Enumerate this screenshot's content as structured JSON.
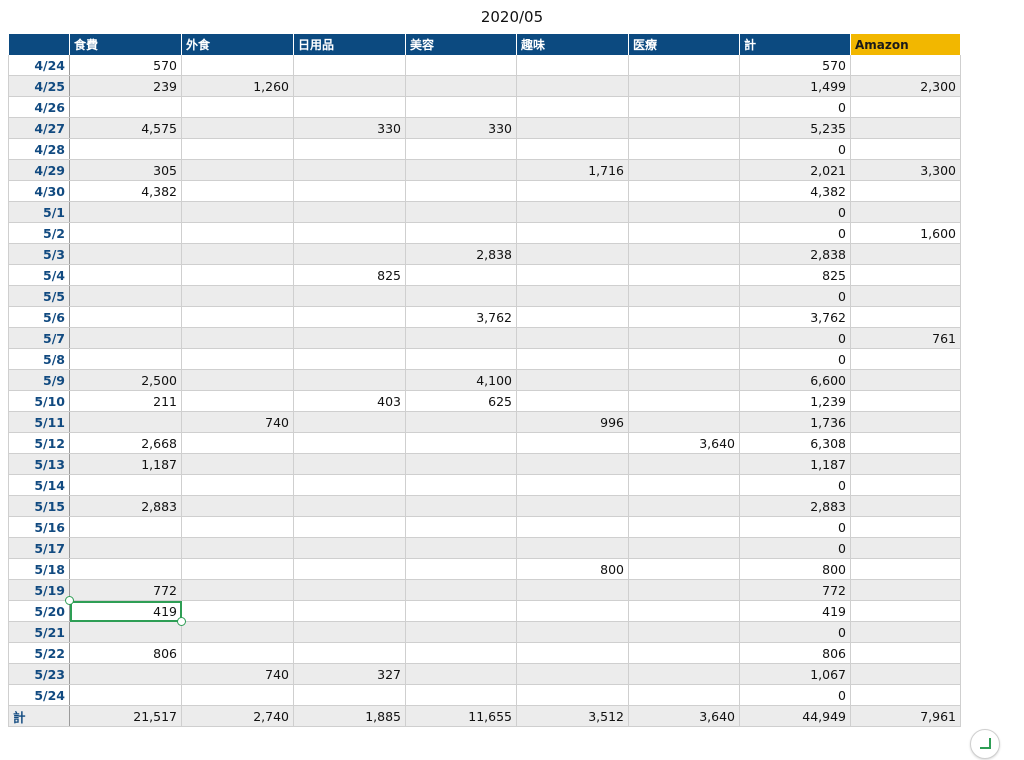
{
  "sheet": {
    "title": "2020/05",
    "columns": [
      "",
      "食費",
      "外食",
      "日用品",
      "美容",
      "趣味",
      "医療",
      "計",
      "Amazon"
    ],
    "rows": [
      [
        "4/24",
        "570",
        "",
        "",
        "",
        "",
        "",
        "570",
        ""
      ],
      [
        "4/25",
        "239",
        "1,260",
        "",
        "",
        "",
        "",
        "1,499",
        "2,300"
      ],
      [
        "4/26",
        "",
        "",
        "",
        "",
        "",
        "",
        "0",
        ""
      ],
      [
        "4/27",
        "4,575",
        "",
        "330",
        "330",
        "",
        "",
        "5,235",
        ""
      ],
      [
        "4/28",
        "",
        "",
        "",
        "",
        "",
        "",
        "0",
        ""
      ],
      [
        "4/29",
        "305",
        "",
        "",
        "",
        "1,716",
        "",
        "2,021",
        "3,300"
      ],
      [
        "4/30",
        "4,382",
        "",
        "",
        "",
        "",
        "",
        "4,382",
        ""
      ],
      [
        "5/1",
        "",
        "",
        "",
        "",
        "",
        "",
        "0",
        ""
      ],
      [
        "5/2",
        "",
        "",
        "",
        "",
        "",
        "",
        "0",
        "1,600"
      ],
      [
        "5/3",
        "",
        "",
        "",
        "2,838",
        "",
        "",
        "2,838",
        ""
      ],
      [
        "5/4",
        "",
        "",
        "825",
        "",
        "",
        "",
        "825",
        ""
      ],
      [
        "5/5",
        "",
        "",
        "",
        "",
        "",
        "",
        "0",
        ""
      ],
      [
        "5/6",
        "",
        "",
        "",
        "3,762",
        "",
        "",
        "3,762",
        ""
      ],
      [
        "5/7",
        "",
        "",
        "",
        "",
        "",
        "",
        "0",
        "761"
      ],
      [
        "5/8",
        "",
        "",
        "",
        "",
        "",
        "",
        "0",
        ""
      ],
      [
        "5/9",
        "2,500",
        "",
        "",
        "4,100",
        "",
        "",
        "6,600",
        ""
      ],
      [
        "5/10",
        "211",
        "",
        "403",
        "625",
        "",
        "",
        "1,239",
        ""
      ],
      [
        "5/11",
        "",
        "740",
        "",
        "",
        "996",
        "",
        "1,736",
        ""
      ],
      [
        "5/12",
        "2,668",
        "",
        "",
        "",
        "",
        "3,640",
        "6,308",
        ""
      ],
      [
        "5/13",
        "1,187",
        "",
        "",
        "",
        "",
        "",
        "1,187",
        ""
      ],
      [
        "5/14",
        "",
        "",
        "",
        "",
        "",
        "",
        "0",
        ""
      ],
      [
        "5/15",
        "2,883",
        "",
        "",
        "",
        "",
        "",
        "2,883",
        ""
      ],
      [
        "5/16",
        "",
        "",
        "",
        "",
        "",
        "",
        "0",
        ""
      ],
      [
        "5/17",
        "",
        "",
        "",
        "",
        "",
        "",
        "0",
        ""
      ],
      [
        "5/18",
        "",
        "",
        "",
        "",
        "800",
        "",
        "800",
        ""
      ],
      [
        "5/19",
        "772",
        "",
        "",
        "",
        "",
        "",
        "772",
        ""
      ],
      [
        "5/20",
        "419",
        "",
        "",
        "",
        "",
        "",
        "419",
        ""
      ],
      [
        "5/21",
        "",
        "",
        "",
        "",
        "",
        "",
        "0",
        ""
      ],
      [
        "5/22",
        "806",
        "",
        "",
        "",
        "",
        "",
        "806",
        ""
      ],
      [
        "5/23",
        "",
        "740",
        "327",
        "",
        "",
        "",
        "1,067",
        ""
      ],
      [
        "5/24",
        "",
        "",
        "",
        "",
        "",
        "",
        "0",
        ""
      ]
    ],
    "total_row": [
      "計",
      "21,517",
      "2,740",
      "1,885",
      "11,655",
      "3,512",
      "3,640",
      "44,949",
      "7,961"
    ],
    "selected_cell": "5/20 食費",
    "colors": {
      "header_bg": "#0c4a80",
      "amazon_header_bg": "#f2b700",
      "date_text": "#114a80",
      "stripe": "#ececec",
      "selection": "#2e9e55"
    },
    "icons": {
      "resize": "resize-corner-icon"
    }
  }
}
